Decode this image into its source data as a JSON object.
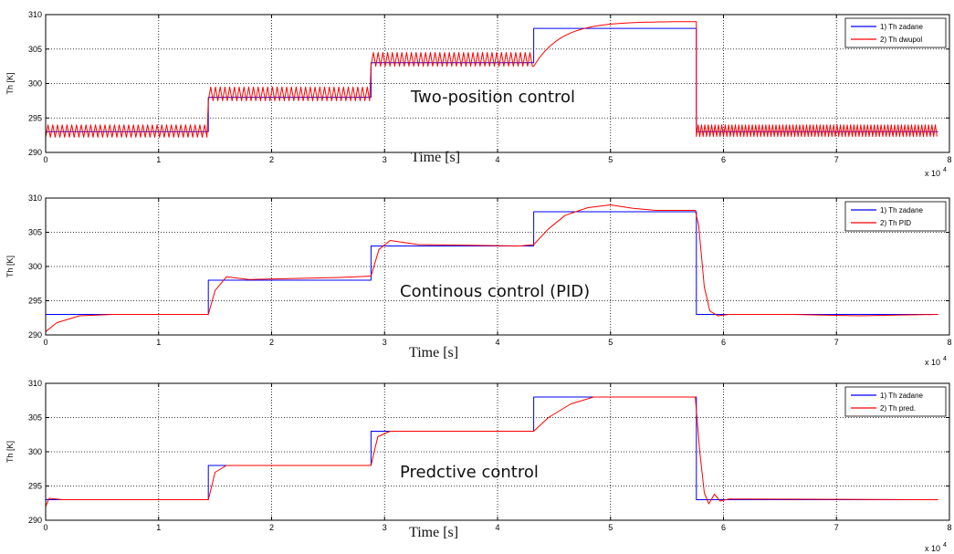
{
  "chart_data": [
    {
      "type": "line",
      "title": "",
      "overlay_text": "Two-position control",
      "xlabel": "Time [s]",
      "ylabel": "Th [K]",
      "x_exponent_label": "x 10",
      "x_exponent_power": "4",
      "xlim": [
        0,
        80000
      ],
      "ylim": [
        290,
        310
      ],
      "x_ticks": [
        0,
        1,
        2,
        3,
        4,
        5,
        6,
        7,
        8
      ],
      "y_ticks": [
        290,
        295,
        300,
        305,
        310
      ],
      "grid": true,
      "legend_position": "top-right",
      "series": [
        {
          "name": "1) Th zadane",
          "color": "#0000ff",
          "style": "step",
          "x": [
            0,
            14400,
            28800,
            43200,
            57600,
            79000
          ],
          "y": [
            293,
            298,
            303,
            308,
            293,
            293
          ]
        },
        {
          "name": "2) Th dwupol",
          "color": "#ff0000",
          "style": "oscillating",
          "segments": [
            {
              "x0": 0,
              "x1": 14400,
              "low": 292.2,
              "high": 294.0,
              "period": 420
            },
            {
              "x0": 14400,
              "x1": 28800,
              "low": 297.5,
              "high": 299.5,
              "period": 420
            },
            {
              "x0": 28800,
              "x1": 43200,
              "low": 302.5,
              "high": 304.5,
              "period": 420
            },
            {
              "x0": 43200,
              "x1": 57600,
              "from": 302.5,
              "to": 309.0
            },
            {
              "x0": 57600,
              "x1": 79000,
              "low": 292.3,
              "high": 294.0,
              "period": 300
            }
          ]
        }
      ]
    },
    {
      "type": "line",
      "title": "",
      "overlay_text": "Continous control (PID)",
      "xlabel": "Time [s]",
      "ylabel": "Th [K]",
      "x_exponent_label": "x 10",
      "x_exponent_power": "4",
      "xlim": [
        0,
        80000
      ],
      "ylim": [
        290,
        310
      ],
      "x_ticks": [
        0,
        1,
        2,
        3,
        4,
        5,
        6,
        7,
        8
      ],
      "y_ticks": [
        290,
        295,
        300,
        305,
        310
      ],
      "grid": true,
      "legend_position": "top-right",
      "series": [
        {
          "name": "1) Th zadane",
          "color": "#0000ff",
          "style": "step",
          "x": [
            0,
            14400,
            28800,
            43200,
            57600,
            79000
          ],
          "y": [
            293,
            298,
            303,
            308,
            293,
            293
          ]
        },
        {
          "name": "2) Th PID",
          "color": "#ff0000",
          "style": "line",
          "x": [
            0,
            1000,
            3000,
            6000,
            10000,
            14400,
            15000,
            16000,
            18000,
            26000,
            28800,
            29500,
            30500,
            33000,
            42000,
            43200,
            44500,
            46000,
            48000,
            50000,
            52000,
            54000,
            57500,
            57800,
            58300,
            58800,
            59500,
            60500,
            66000,
            72000,
            79000
          ],
          "y": [
            290.5,
            291.8,
            292.8,
            293.0,
            293.0,
            293.0,
            296.5,
            298.5,
            298.1,
            298.4,
            298.6,
            302.5,
            303.8,
            303.2,
            303.0,
            303.2,
            305.5,
            307.5,
            308.6,
            309.0,
            308.5,
            308.2,
            308.2,
            306.0,
            297.0,
            293.5,
            292.8,
            293.0,
            293.0,
            292.8,
            293.0
          ]
        }
      ]
    },
    {
      "type": "line",
      "title": "",
      "overlay_text": "Predctive control",
      "xlabel": "Time [s]",
      "ylabel": "Th [K]",
      "x_exponent_label": "x 10",
      "x_exponent_power": "4",
      "xlim": [
        0,
        80000
      ],
      "ylim": [
        290,
        310
      ],
      "x_ticks": [
        0,
        1,
        2,
        3,
        4,
        5,
        6,
        7,
        8
      ],
      "y_ticks": [
        290,
        295,
        300,
        305,
        310
      ],
      "grid": true,
      "legend_position": "top-right",
      "series": [
        {
          "name": "1) Th zadane",
          "color": "#0000ff",
          "style": "step",
          "x": [
            0,
            14400,
            28800,
            43200,
            57600,
            79000
          ],
          "y": [
            293,
            298,
            303,
            308,
            293,
            293
          ]
        },
        {
          "name": "2) Th pred.",
          "color": "#ff0000",
          "style": "line",
          "x": [
            0,
            300,
            1500,
            14400,
            15000,
            16000,
            28800,
            29400,
            30500,
            43200,
            44500,
            46500,
            48500,
            57500,
            57900,
            58300,
            58700,
            59200,
            59700,
            60500,
            79000
          ],
          "y": [
            292.0,
            293.2,
            293.0,
            293.0,
            297.0,
            298.0,
            298.0,
            302.2,
            303.0,
            303.0,
            305.0,
            307.0,
            308.0,
            308.0,
            300.0,
            294.0,
            292.4,
            293.8,
            292.8,
            293.1,
            293.0
          ]
        }
      ]
    }
  ]
}
